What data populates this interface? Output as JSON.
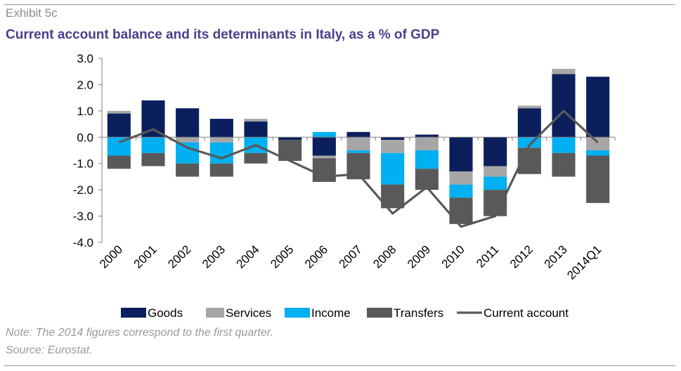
{
  "header": {
    "exhibit": "Exhibit 5c",
    "title": "Current account balance and its determinants in Italy, as a % of GDP"
  },
  "footer": {
    "note": "Note: The 2014 figures correspond to the first quarter.",
    "source": "Source: Eurostat."
  },
  "chart_data": {
    "type": "bar",
    "stacked": true,
    "categories": [
      "2000",
      "2001",
      "2002",
      "2003",
      "2004",
      "2005",
      "2006",
      "2007",
      "2008",
      "2009",
      "2010",
      "2011",
      "2012",
      "2013",
      "2014Q1"
    ],
    "ylim": [
      -4.0,
      3.0
    ],
    "yticks": [
      "3.0",
      "2.0",
      "1.0",
      "0.0",
      "-1.0",
      "-2.0",
      "-3.0",
      "-4.0"
    ],
    "legend_position": "bottom",
    "series": [
      {
        "name": "Goods",
        "type": "bar",
        "color": "#0b1f5c",
        "values": [
          0.9,
          1.4,
          1.1,
          0.7,
          0.6,
          -0.1,
          -0.7,
          0.2,
          -0.1,
          0.1,
          -1.3,
          -1.1,
          1.1,
          2.4,
          2.3
        ]
      },
      {
        "name": "Services",
        "type": "bar",
        "color": "#a6a6a6",
        "values": [
          0.1,
          0.0,
          -0.2,
          -0.2,
          0.1,
          0.0,
          -0.1,
          -0.5,
          -0.5,
          -0.5,
          -0.5,
          -0.4,
          0.1,
          0.2,
          -0.5
        ]
      },
      {
        "name": "Income",
        "type": "bar",
        "color": "#00b0f0",
        "values": [
          -0.7,
          -0.6,
          -0.8,
          -0.8,
          -0.6,
          0.0,
          0.2,
          -0.1,
          -1.2,
          -0.7,
          -0.5,
          -0.5,
          -0.4,
          -0.6,
          -0.2
        ]
      },
      {
        "name": "Transfers",
        "type": "bar",
        "color": "#595959",
        "values": [
          -0.5,
          -0.5,
          -0.5,
          -0.5,
          -0.4,
          -0.8,
          -0.9,
          -1.0,
          -0.9,
          -0.8,
          -1.0,
          -1.0,
          -1.0,
          -0.9,
          -1.8
        ]
      },
      {
        "name": "Current account",
        "type": "line",
        "color": "#595959",
        "values": [
          -0.2,
          0.3,
          -0.4,
          -0.8,
          -0.3,
          -0.9,
          -1.5,
          -1.4,
          -2.9,
          -1.9,
          -3.4,
          -3.0,
          -0.3,
          1.0,
          -0.2
        ]
      }
    ]
  }
}
